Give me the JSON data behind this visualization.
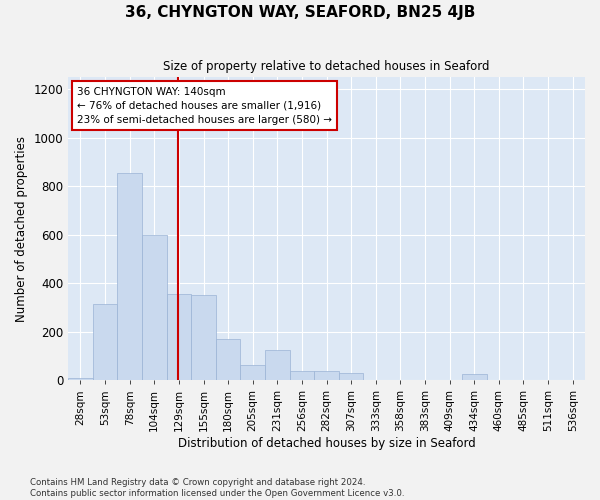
{
  "title": "36, CHYNGTON WAY, SEAFORD, BN25 4JB",
  "subtitle": "Size of property relative to detached houses in Seaford",
  "xlabel": "Distribution of detached houses by size in Seaford",
  "ylabel": "Number of detached properties",
  "bar_color": "#c9d9ee",
  "bar_edge_color": "#9ab3d5",
  "bg_color": "#dde8f5",
  "grid_color": "#ffffff",
  "fig_bg_color": "#f2f2f2",
  "red_line_color": "#cc0000",
  "annotation_box_color": "#cc0000",
  "bin_labels": [
    "28sqm",
    "53sqm",
    "78sqm",
    "104sqm",
    "129sqm",
    "155sqm",
    "180sqm",
    "205sqm",
    "231sqm",
    "256sqm",
    "282sqm",
    "307sqm",
    "333sqm",
    "358sqm",
    "383sqm",
    "409sqm",
    "434sqm",
    "460sqm",
    "485sqm",
    "511sqm",
    "536sqm"
  ],
  "bar_values": [
    10,
    315,
    855,
    600,
    355,
    350,
    170,
    65,
    125,
    40,
    40,
    30,
    0,
    0,
    0,
    0,
    25,
    0,
    0,
    0,
    0
  ],
  "ylim": [
    0,
    1250
  ],
  "yticks": [
    0,
    200,
    400,
    600,
    800,
    1000,
    1200
  ],
  "red_line_x": 4.48,
  "annotation_text": "36 CHYNGTON WAY: 140sqm\n← 76% of detached houses are smaller (1,916)\n23% of semi-detached houses are larger (580) →",
  "footer_line1": "Contains HM Land Registry data © Crown copyright and database right 2024.",
  "footer_line2": "Contains public sector information licensed under the Open Government Licence v3.0."
}
